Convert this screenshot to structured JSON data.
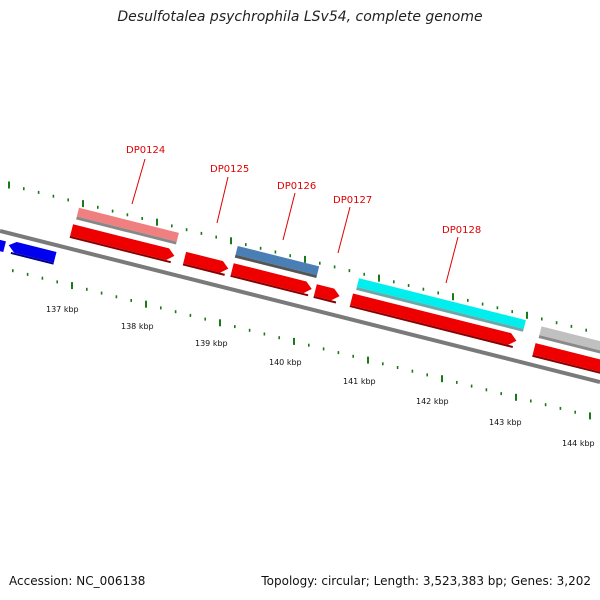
{
  "header": {
    "title": "Desulfotalea psychrophila LSv54, complete genome"
  },
  "footer": {
    "accession": "Accession: NC_006138",
    "stats": "Topology: circular; Length: 3,523,383 bp; Genes: 3,202"
  },
  "colors": {
    "backbone": "#7a7a7a",
    "cds": "#ee0000",
    "tick": "#1a7a1a",
    "label": "#e00000",
    "blue": "#0000ee",
    "light_red": "#f08080",
    "steel_blue": "#4a7fb5",
    "cyan": "#00eeee",
    "gray": "#c0c0c0"
  },
  "scale_labels": [
    "137 kbp",
    "138 kbp",
    "139 kbp",
    "140 kbp",
    "141 kbp",
    "142 kbp",
    "143 kbp",
    "144 kbp"
  ],
  "gene_labels": [
    "DP0124",
    "DP0125",
    "DP0126",
    "DP0127",
    "DP0128"
  ]
}
